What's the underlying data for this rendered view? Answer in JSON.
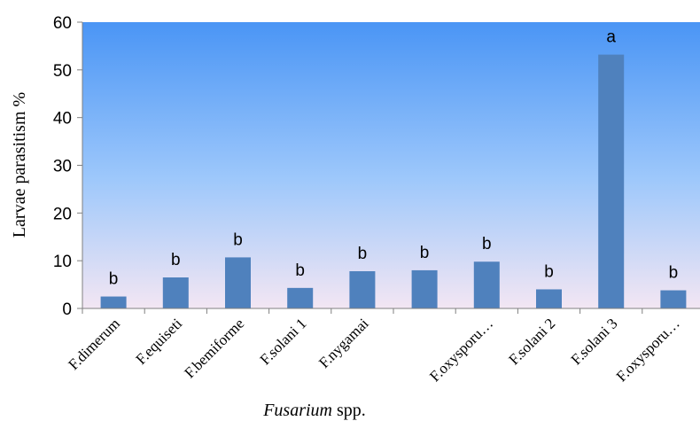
{
  "chart_data": {
    "type": "bar",
    "categories": [
      "F.dimerum",
      "F.equiseti",
      "F.bemiforme",
      "F.solani 1",
      "F.nygamai",
      "",
      "F.oxysporu…",
      "F.solani 2",
      "F.solani 3",
      "F.oxysporu…"
    ],
    "values": [
      2.5,
      6.5,
      10.7,
      4.3,
      7.8,
      8.0,
      9.8,
      4.0,
      53.2,
      3.8
    ],
    "significance_letters": [
      "b",
      "b",
      "b",
      "b",
      "b",
      "b",
      "b",
      "b",
      "a",
      "b"
    ],
    "ylabel": "Larvae parasitism %",
    "xlabel_italic": "Fusarium",
    "xlabel_rest": " spp.",
    "ylim": [
      0,
      60
    ],
    "yticks": [
      0,
      10,
      20,
      30,
      40,
      50,
      60
    ],
    "grid": false,
    "colors": {
      "bar": "#4f81bd",
      "bg_top": "#4a95f5",
      "bg_mid": "#9ec8fb",
      "bg_bottom": "#f3e6f3"
    }
  }
}
